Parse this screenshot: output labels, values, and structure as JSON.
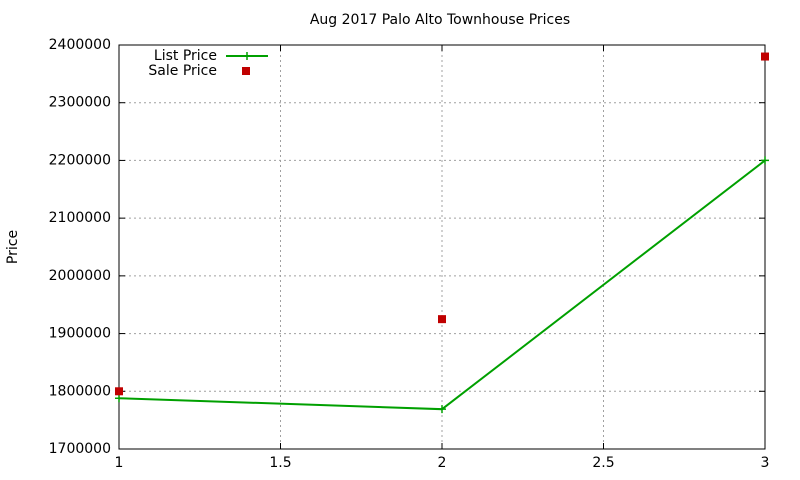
{
  "chart_data": {
    "type": "line",
    "title": "Aug 2017 Palo Alto Townhouse Prices",
    "y_label": "Price",
    "x": [
      1,
      2,
      3
    ],
    "series": [
      {
        "name": "List Price",
        "color": "#00a000",
        "values": [
          1788000,
          1769000,
          2200000
        ],
        "style": "linespoints",
        "marker": "plus"
      },
      {
        "name": "Sale Price",
        "color": "#c00000",
        "values": [
          1800000,
          1925000,
          2380000
        ],
        "style": "points",
        "marker": "square"
      }
    ],
    "xlim": [
      1,
      3
    ],
    "xticks": [
      1,
      1.5,
      2,
      2.5,
      3
    ],
    "ylim": [
      1700000,
      2400000
    ],
    "yticks": [
      1700000,
      1800000,
      1900000,
      2000000,
      2100000,
      2200000,
      2300000,
      2400000
    ],
    "grid": true,
    "legend": "top-left"
  }
}
